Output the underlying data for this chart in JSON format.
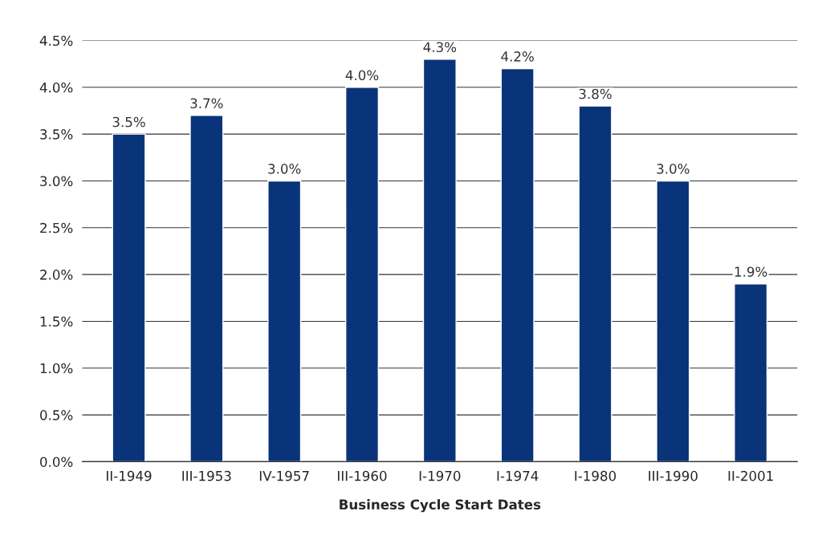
{
  "chart_data": {
    "type": "bar",
    "xlabel": "Business Cycle Start Dates",
    "categories": [
      "II-1949",
      "III-1953",
      "IV-1957",
      "III-1960",
      "I-1970",
      "I-1974",
      "I-1980",
      "III-1990",
      "II-2001"
    ],
    "values": [
      3.5,
      3.7,
      3.0,
      4.0,
      4.3,
      4.2,
      3.8,
      3.0,
      1.9
    ],
    "value_labels": [
      "3.5%",
      "3.7%",
      "3.0%",
      "4.0%",
      "4.3%",
      "4.2%",
      "3.8%",
      "3.0%",
      "1.9%"
    ],
    "color": "#0a347a",
    "ylim": [
      0,
      4.5
    ],
    "yticks": [
      {
        "value": 0,
        "label": "0.0%"
      },
      {
        "value": 0.5,
        "label": "0.5%"
      },
      {
        "value": 1,
        "label": "1.0%"
      },
      {
        "value": 1.5,
        "label": "1.5%"
      },
      {
        "value": 2,
        "label": "2.0%"
      },
      {
        "value": 2.5,
        "label": "2.5%"
      },
      {
        "value": 3,
        "label": "3.0%"
      },
      {
        "value": 3.5,
        "label": "3.5%"
      },
      {
        "value": 4,
        "label": "4.0%"
      },
      {
        "value": 4.5,
        "label": "4.5%"
      }
    ],
    "grid": "y",
    "legend": false
  }
}
